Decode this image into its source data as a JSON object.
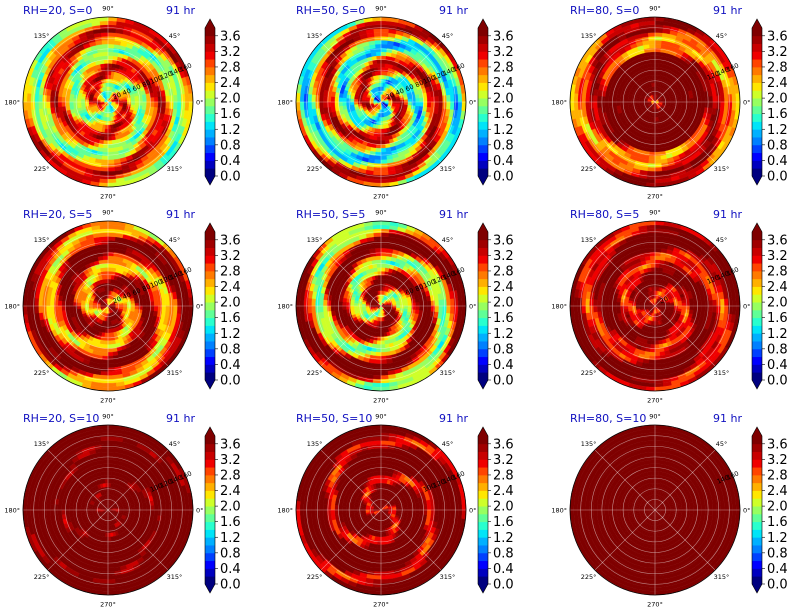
{
  "chart_data": {
    "type": "polar-contour-grid",
    "rows": 3,
    "cols": 3,
    "time_label": "91 hr",
    "angle_ticks": [
      "90°",
      "45°",
      "0°",
      "315°",
      "270°",
      "225°",
      "180°",
      "135°"
    ],
    "radial_ticks": [
      "20",
      "40",
      "60",
      "80",
      "100",
      "120",
      "140",
      "160"
    ],
    "colorbar": {
      "ticks": [
        "0.0",
        "0.4",
        "0.8",
        "1.2",
        "1.6",
        "2.0",
        "2.4",
        "2.8",
        "3.2",
        "3.6"
      ],
      "min": 0.0,
      "max": 3.6,
      "step": 0.2,
      "extend": "both",
      "colors": [
        "#00007f",
        "#0000bf",
        "#0000ff",
        "#0040ff",
        "#0080ff",
        "#00b0ff",
        "#00e4f8",
        "#29ffce",
        "#60ff97",
        "#97ff60",
        "#ceff29",
        "#ffe600",
        "#ffb000",
        "#ff7a00",
        "#ff4400",
        "#f00000",
        "#c80000",
        "#a00000",
        "#7f0000"
      ]
    },
    "panels": [
      {
        "title": "RH=20, S=0",
        "rh": 20,
        "s": 0,
        "dominant": "orange",
        "radial_shown": [
          "20",
          "40",
          "60",
          "80",
          "100",
          "120",
          "140",
          "160"
        ]
      },
      {
        "title": "RH=50, S=0",
        "rh": 50,
        "s": 0,
        "dominant": "mixed",
        "radial_shown": [
          "20",
          "40",
          "60",
          "80",
          "100",
          "120",
          "140",
          "160"
        ]
      },
      {
        "title": "RH=80, S=0",
        "rh": 80,
        "s": 0,
        "dominant": "dark-red",
        "radial_shown": [
          "120",
          "140",
          "160"
        ]
      },
      {
        "title": "RH=20, S=5",
        "rh": 20,
        "s": 5,
        "dominant": "red",
        "radial_shown": [
          "20",
          "40",
          "60",
          "80",
          "100",
          "120",
          "140",
          "160"
        ]
      },
      {
        "title": "RH=50, S=5",
        "rh": 50,
        "s": 5,
        "dominant": "red",
        "radial_shown": [
          "60",
          "80",
          "100",
          "120",
          "140",
          "160"
        ]
      },
      {
        "title": "RH=80, S=5",
        "rh": 80,
        "s": 5,
        "dominant": "red",
        "radial_shown": [
          "20",
          "120",
          "140",
          "160"
        ]
      },
      {
        "title": "RH=20, S=10",
        "rh": 20,
        "s": 10,
        "dominant": "dark-red",
        "radial_shown": [
          "100",
          "120",
          "140",
          "160"
        ]
      },
      {
        "title": "RH=50, S=10",
        "rh": 50,
        "s": 10,
        "dominant": "dark-red",
        "radial_shown": [
          "100",
          "120",
          "140",
          "160"
        ]
      },
      {
        "title": "RH=80, S=10",
        "rh": 80,
        "s": 10,
        "dominant": "dark-red",
        "radial_shown": [
          "140",
          "160"
        ]
      }
    ]
  }
}
